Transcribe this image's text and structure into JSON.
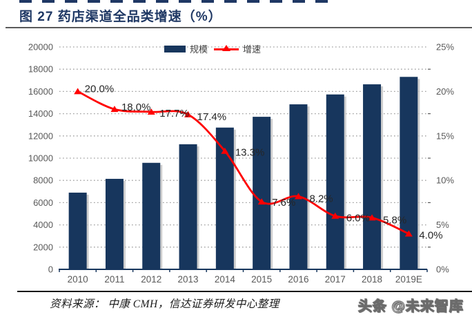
{
  "header": {
    "title": "图 27 药店渠道全品类增速（%）",
    "title_color": "#1f3864"
  },
  "chart_data": {
    "type": "bar",
    "subtype": "bar+line combo, dual axis",
    "title": "图 27 药店渠道全品类增速（%）",
    "categories": [
      "2010",
      "2011",
      "2012",
      "2013",
      "2014",
      "2015",
      "2016",
      "2017",
      "2018",
      "2019E"
    ],
    "series": [
      {
        "name": "规模",
        "type": "bar",
        "axis": "left",
        "color": "#17365d",
        "values": [
          6900,
          8140,
          9580,
          11250,
          12750,
          13720,
          14840,
          15730,
          16640,
          17310
        ]
      },
      {
        "name": "增速",
        "type": "line",
        "axis": "right",
        "color": "#ff0000",
        "values": [
          20.0,
          18.0,
          17.7,
          17.4,
          13.3,
          7.6,
          8.2,
          6.0,
          5.8,
          4.0
        ],
        "point_labels": [
          "20.0%",
          "18.0%",
          "17.7%",
          "17.4%",
          "13.3%",
          "7.6%",
          "8.2%",
          "6.0%",
          "5.8%",
          "4.0%"
        ],
        "label_offsets": [
          [
            10,
            1
          ],
          [
            10,
            2
          ],
          [
            12,
            7
          ],
          [
            13,
            8
          ],
          [
            15,
            7
          ],
          [
            15,
            6
          ],
          [
            16,
            8
          ],
          [
            16,
            8
          ],
          [
            16,
            8
          ],
          [
            15,
            7
          ]
        ]
      }
    ],
    "left_axis": {
      "min": 0,
      "max": 20000,
      "step": 2000,
      "labels": [
        "0",
        "2000",
        "4000",
        "6000",
        "8000",
        "10000",
        "12000",
        "14000",
        "16000",
        "18000",
        "20000"
      ]
    },
    "right_axis": {
      "min": 0,
      "max": 25,
      "step": 5,
      "labels": [
        "0%",
        "5%",
        "10%",
        "15%",
        "20%",
        "25%"
      ],
      "minor_step": 2.5
    },
    "grid": "dotted horizontal",
    "legend_position": "top-center",
    "colors": {
      "bar": "#17365d",
      "bar_shadow": "#c2c2c2",
      "line": "#ff0000",
      "grid": "#9e9e9e",
      "axis": "#17365d",
      "tick_label": "#595959",
      "data_label": "#262626"
    }
  },
  "footer": {
    "source": "资料来源： 中康 CMH，信达证券研发中心整理",
    "watermark": "头条 @未来智库"
  }
}
